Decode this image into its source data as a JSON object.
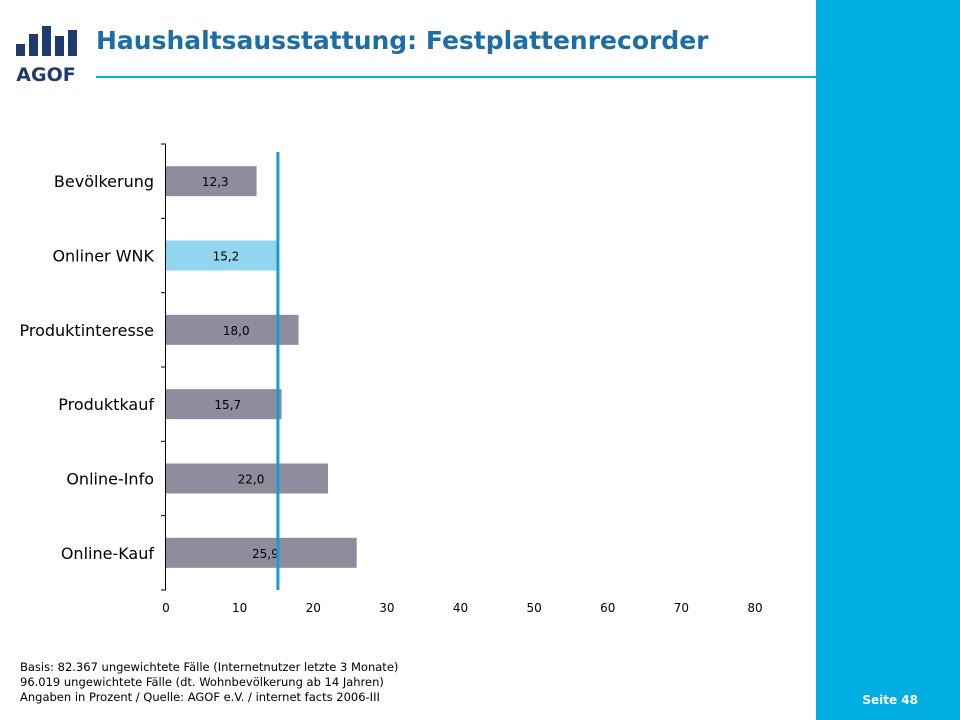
{
  "header": {
    "title": "Haushaltsausstattung: Festplattenrecorder",
    "logo_text": "AGOF"
  },
  "colors": {
    "accent": "#00aee2",
    "title": "#1c6ea4",
    "bar_default": "#8e8c9d",
    "bar_highlight": "#92d5ef",
    "reference_line": "#1a9ad6",
    "logo": "#1f3b6e"
  },
  "chart_data": {
    "type": "bar",
    "orientation": "horizontal",
    "categories": [
      "Bevölkerung",
      "Onliner WNK",
      "Produktinteresse",
      "Produktkauf",
      "Online-Info",
      "Online-Kauf"
    ],
    "values": [
      12.3,
      15.2,
      18.0,
      15.7,
      22.0,
      25.9
    ],
    "value_labels": [
      "12,3",
      "15,2",
      "18,0",
      "15,7",
      "22,0",
      "25,9"
    ],
    "highlight_index": 1,
    "reference_value": 15.2,
    "xlim": [
      0,
      80
    ],
    "x_ticks": [
      0,
      10,
      20,
      30,
      40,
      50,
      60,
      70,
      80
    ],
    "grid": false
  },
  "footer": {
    "lines": [
      "Basis: 82.367 ungewichtete Fälle (Internetnutzer letzte 3 Monate)",
      "96.019 ungewichtete Fälle (dt. Wohnbevölkerung ab 14 Jahren)",
      "Angaben in Prozent / Quelle: AGOF e.V. / internet facts 2006-III"
    ],
    "page_label": "Seite 48"
  }
}
